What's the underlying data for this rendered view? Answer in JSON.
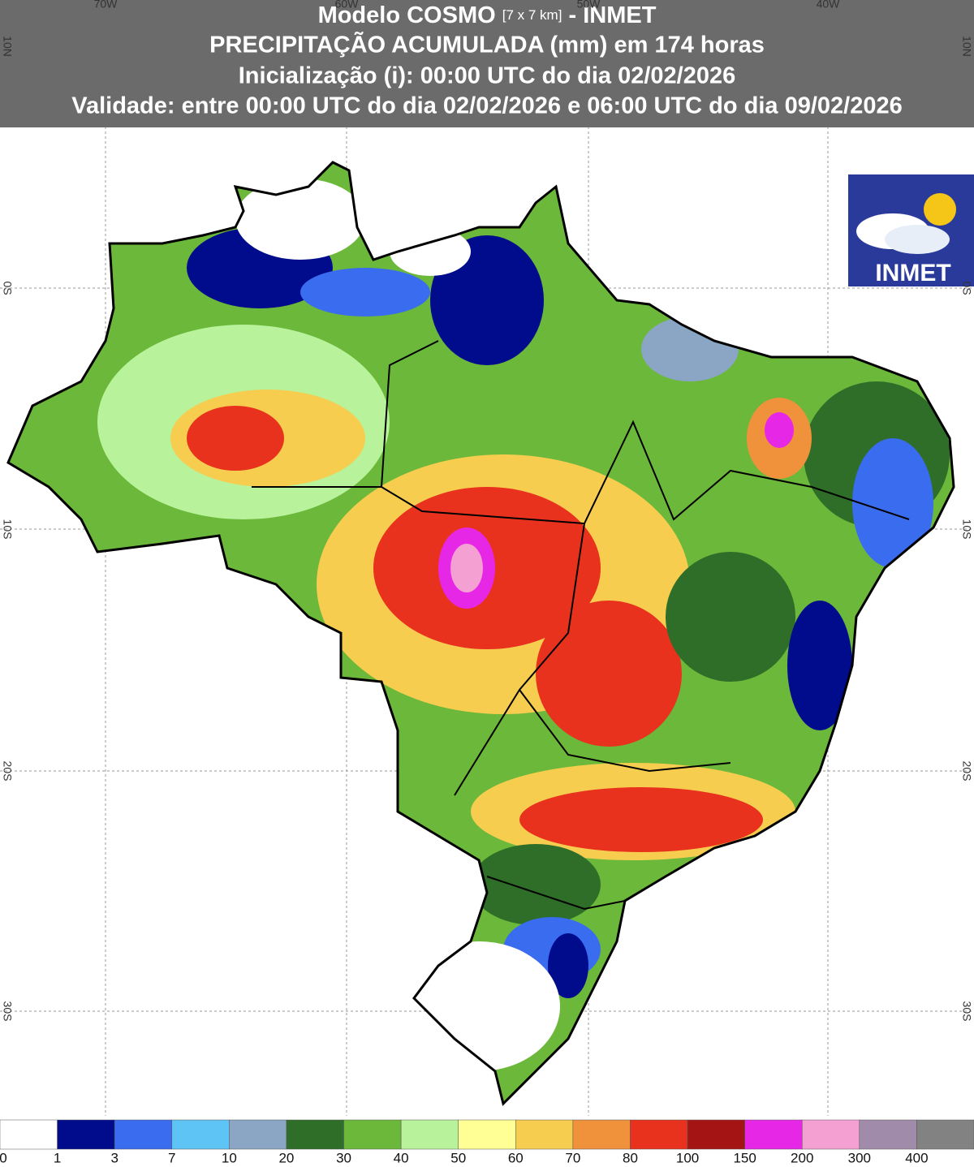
{
  "header": {
    "line1": {
      "model": "Modelo COSMO",
      "resolution": "[7 x 7 km]",
      "source": "- INMET"
    },
    "line2": "PRECIPITAÇÃO ACUMULADA (mm) em 174 horas",
    "line3": "Inicialização (i): 00:00 UTC do dia 02/02/2026",
    "line4": "Validade: entre 00:00 UTC do dia 02/02/2026 e 06:00 UTC do dia 09/02/2026"
  },
  "logo": {
    "text": "INMET"
  },
  "grid": {
    "lon_labels": [
      "70W",
      "60W",
      "50W",
      "40W"
    ],
    "lat_labels": [
      "10N",
      "0S",
      "10S",
      "20S",
      "30S"
    ]
  },
  "legend": {
    "labels": [
      0,
      1,
      3,
      7,
      10,
      20,
      30,
      40,
      50,
      60,
      70,
      80,
      100,
      150,
      200,
      300,
      400
    ],
    "colors": [
      "#ffffff",
      "#000c8c",
      "#3a6cf0",
      "#5ec3f5",
      "#8aa6c4",
      "#2e6e28",
      "#6bb83a",
      "#b8f29a",
      "#ffff96",
      "#f7cd50",
      "#f0923c",
      "#e8321e",
      "#a51414",
      "#e628e6",
      "#f5a0d2",
      "#a08caa",
      "#828282"
    ]
  }
}
